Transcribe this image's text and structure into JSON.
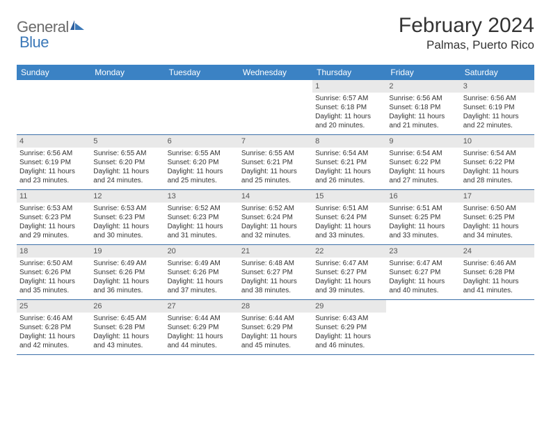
{
  "logo": {
    "general": "General",
    "blue": "Blue"
  },
  "title": "February 2024",
  "location": "Palmas, Puerto Rico",
  "colors": {
    "header_bg": "#3b82c4",
    "header_text": "#ffffff",
    "daynum_bg": "#e9e9e9",
    "week_border": "#3b6fa8",
    "logo_gray": "#6a6a6a",
    "logo_blue": "#3b78b8"
  },
  "day_names": [
    "Sunday",
    "Monday",
    "Tuesday",
    "Wednesday",
    "Thursday",
    "Friday",
    "Saturday"
  ],
  "weeks": [
    [
      {
        "empty": true
      },
      {
        "empty": true
      },
      {
        "empty": true
      },
      {
        "empty": true
      },
      {
        "n": "1",
        "sunrise": "6:57 AM",
        "sunset": "6:18 PM",
        "dl1": "Daylight: 11 hours",
        "dl2": "and 20 minutes."
      },
      {
        "n": "2",
        "sunrise": "6:56 AM",
        "sunset": "6:18 PM",
        "dl1": "Daylight: 11 hours",
        "dl2": "and 21 minutes."
      },
      {
        "n": "3",
        "sunrise": "6:56 AM",
        "sunset": "6:19 PM",
        "dl1": "Daylight: 11 hours",
        "dl2": "and 22 minutes."
      }
    ],
    [
      {
        "n": "4",
        "sunrise": "6:56 AM",
        "sunset": "6:19 PM",
        "dl1": "Daylight: 11 hours",
        "dl2": "and 23 minutes."
      },
      {
        "n": "5",
        "sunrise": "6:55 AM",
        "sunset": "6:20 PM",
        "dl1": "Daylight: 11 hours",
        "dl2": "and 24 minutes."
      },
      {
        "n": "6",
        "sunrise": "6:55 AM",
        "sunset": "6:20 PM",
        "dl1": "Daylight: 11 hours",
        "dl2": "and 25 minutes."
      },
      {
        "n": "7",
        "sunrise": "6:55 AM",
        "sunset": "6:21 PM",
        "dl1": "Daylight: 11 hours",
        "dl2": "and 25 minutes."
      },
      {
        "n": "8",
        "sunrise": "6:54 AM",
        "sunset": "6:21 PM",
        "dl1": "Daylight: 11 hours",
        "dl2": "and 26 minutes."
      },
      {
        "n": "9",
        "sunrise": "6:54 AM",
        "sunset": "6:22 PM",
        "dl1": "Daylight: 11 hours",
        "dl2": "and 27 minutes."
      },
      {
        "n": "10",
        "sunrise": "6:54 AM",
        "sunset": "6:22 PM",
        "dl1": "Daylight: 11 hours",
        "dl2": "and 28 minutes."
      }
    ],
    [
      {
        "n": "11",
        "sunrise": "6:53 AM",
        "sunset": "6:23 PM",
        "dl1": "Daylight: 11 hours",
        "dl2": "and 29 minutes."
      },
      {
        "n": "12",
        "sunrise": "6:53 AM",
        "sunset": "6:23 PM",
        "dl1": "Daylight: 11 hours",
        "dl2": "and 30 minutes."
      },
      {
        "n": "13",
        "sunrise": "6:52 AM",
        "sunset": "6:23 PM",
        "dl1": "Daylight: 11 hours",
        "dl2": "and 31 minutes."
      },
      {
        "n": "14",
        "sunrise": "6:52 AM",
        "sunset": "6:24 PM",
        "dl1": "Daylight: 11 hours",
        "dl2": "and 32 minutes."
      },
      {
        "n": "15",
        "sunrise": "6:51 AM",
        "sunset": "6:24 PM",
        "dl1": "Daylight: 11 hours",
        "dl2": "and 33 minutes."
      },
      {
        "n": "16",
        "sunrise": "6:51 AM",
        "sunset": "6:25 PM",
        "dl1": "Daylight: 11 hours",
        "dl2": "and 33 minutes."
      },
      {
        "n": "17",
        "sunrise": "6:50 AM",
        "sunset": "6:25 PM",
        "dl1": "Daylight: 11 hours",
        "dl2": "and 34 minutes."
      }
    ],
    [
      {
        "n": "18",
        "sunrise": "6:50 AM",
        "sunset": "6:26 PM",
        "dl1": "Daylight: 11 hours",
        "dl2": "and 35 minutes."
      },
      {
        "n": "19",
        "sunrise": "6:49 AM",
        "sunset": "6:26 PM",
        "dl1": "Daylight: 11 hours",
        "dl2": "and 36 minutes."
      },
      {
        "n": "20",
        "sunrise": "6:49 AM",
        "sunset": "6:26 PM",
        "dl1": "Daylight: 11 hours",
        "dl2": "and 37 minutes."
      },
      {
        "n": "21",
        "sunrise": "6:48 AM",
        "sunset": "6:27 PM",
        "dl1": "Daylight: 11 hours",
        "dl2": "and 38 minutes."
      },
      {
        "n": "22",
        "sunrise": "6:47 AM",
        "sunset": "6:27 PM",
        "dl1": "Daylight: 11 hours",
        "dl2": "and 39 minutes."
      },
      {
        "n": "23",
        "sunrise": "6:47 AM",
        "sunset": "6:27 PM",
        "dl1": "Daylight: 11 hours",
        "dl2": "and 40 minutes."
      },
      {
        "n": "24",
        "sunrise": "6:46 AM",
        "sunset": "6:28 PM",
        "dl1": "Daylight: 11 hours",
        "dl2": "and 41 minutes."
      }
    ],
    [
      {
        "n": "25",
        "sunrise": "6:46 AM",
        "sunset": "6:28 PM",
        "dl1": "Daylight: 11 hours",
        "dl2": "and 42 minutes."
      },
      {
        "n": "26",
        "sunrise": "6:45 AM",
        "sunset": "6:28 PM",
        "dl1": "Daylight: 11 hours",
        "dl2": "and 43 minutes."
      },
      {
        "n": "27",
        "sunrise": "6:44 AM",
        "sunset": "6:29 PM",
        "dl1": "Daylight: 11 hours",
        "dl2": "and 44 minutes."
      },
      {
        "n": "28",
        "sunrise": "6:44 AM",
        "sunset": "6:29 PM",
        "dl1": "Daylight: 11 hours",
        "dl2": "and 45 minutes."
      },
      {
        "n": "29",
        "sunrise": "6:43 AM",
        "sunset": "6:29 PM",
        "dl1": "Daylight: 11 hours",
        "dl2": "and 46 minutes."
      },
      {
        "empty": true
      },
      {
        "empty": true
      }
    ]
  ]
}
